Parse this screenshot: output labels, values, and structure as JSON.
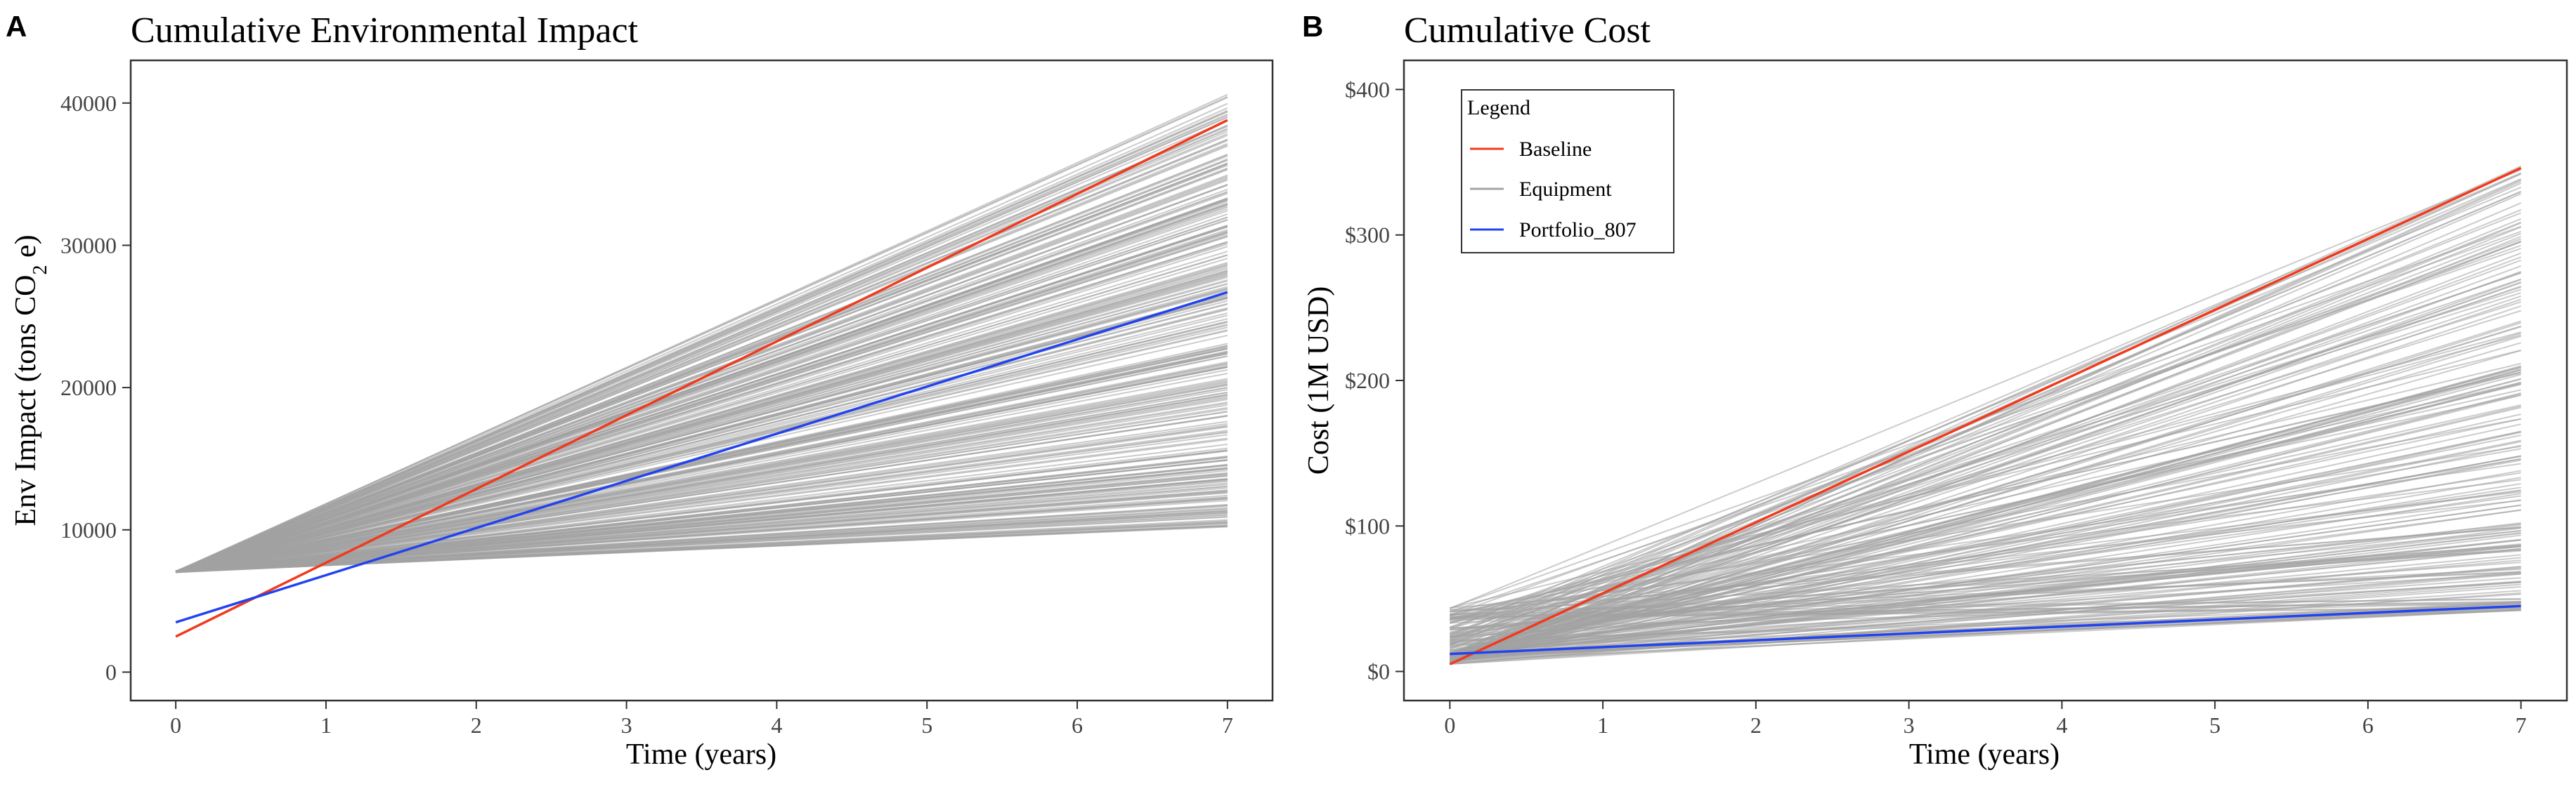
{
  "colors": {
    "baseline": "#f03a1e",
    "equipment": "#a3a3a3",
    "portfolio": "#2143f0",
    "frame": "#333333"
  },
  "chart_data": [
    {
      "panel": "A",
      "type": "line",
      "title": "Cumulative Environmental Impact",
      "xlabel": "Time (years)",
      "ylabel_parts": [
        "Env Impact (tons CO",
        "2",
        " e)"
      ],
      "x": [
        0,
        7
      ],
      "xlim": [
        -0.3,
        7.3
      ],
      "ylim": [
        -2000,
        43000
      ],
      "xticks": [
        0,
        1,
        2,
        3,
        4,
        5,
        6,
        7
      ],
      "yticks": [
        0,
        10000,
        20000,
        30000,
        40000
      ],
      "ytick_labels": [
        "0",
        "10000",
        "20000",
        "30000",
        "40000"
      ],
      "series": [
        {
          "name": "Baseline",
          "values": [
            2500,
            38800
          ]
        },
        {
          "name": "Portfolio_807",
          "values": [
            3500,
            26700
          ]
        }
      ],
      "equipment": {
        "name": "Equipment",
        "start_values": [
          7000,
          7100
        ],
        "end_range": [
          10200,
          40800
        ],
        "count": 300
      }
    },
    {
      "panel": "B",
      "type": "line",
      "title": "Cumulative Cost",
      "xlabel": "Time (years)",
      "ylabel": "Cost (1M USD)",
      "x": [
        0,
        7
      ],
      "xlim": [
        -0.3,
        7.3
      ],
      "ylim": [
        -20,
        420
      ],
      "xticks": [
        0,
        1,
        2,
        3,
        4,
        5,
        6,
        7
      ],
      "yticks": [
        0,
        100,
        200,
        300,
        400
      ],
      "ytick_labels": [
        "$0",
        "$100",
        "$200",
        "$300",
        "$400"
      ],
      "series": [
        {
          "name": "Baseline",
          "values": [
            5,
            346
          ]
        },
        {
          "name": "Portfolio_807",
          "values": [
            12,
            45
          ]
        }
      ],
      "equipment": {
        "name": "Equipment",
        "start_values": [
          5,
          44
        ],
        "end_range": [
          42,
          350
        ],
        "count": 200
      },
      "legend": {
        "title": "Legend",
        "position": "top-left",
        "entries": [
          "Baseline",
          "Equipment",
          "Portfolio_807"
        ]
      }
    }
  ]
}
